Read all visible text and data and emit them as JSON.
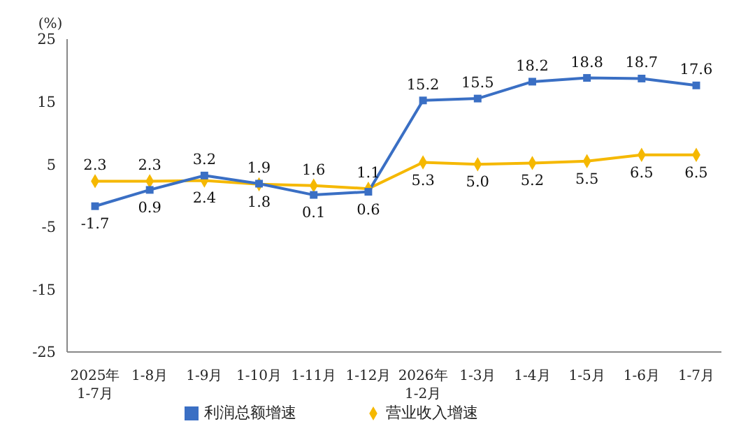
{
  "chart_data": {
    "type": "line",
    "ylabel": "(%)",
    "categories": [
      "2025年\n1-7月",
      "1-8月",
      "1-9月",
      "1-10月",
      "1-11月",
      "1-12月",
      "2026年\n1-2月",
      "1-3月",
      "1-4月",
      "1-5月",
      "1-6月",
      "1-7月"
    ],
    "series": [
      {
        "name": "营业收入增速",
        "color": "#f5b800",
        "marker": "diamond",
        "values": [
          2.3,
          2.3,
          2.4,
          1.8,
          1.6,
          1.1,
          5.3,
          5.0,
          5.2,
          5.5,
          6.5,
          6.5
        ],
        "value_labels": [
          "2.3",
          "2.3",
          "2.4",
          "1.8",
          "1.6",
          "1.1",
          "5.3",
          "5.0",
          "5.2",
          "5.5",
          "6.5",
          "6.5"
        ]
      },
      {
        "name": "利润总额增速",
        "color": "#3a6fc4",
        "marker": "square",
        "values": [
          -1.7,
          0.9,
          3.2,
          1.9,
          0.1,
          0.6,
          15.2,
          15.5,
          18.2,
          18.8,
          18.7,
          17.6
        ]
      }
    ],
    "ylim": [
      -25,
      25
    ],
    "yticks": [
      -25,
      -15,
      -5,
      5,
      15,
      25
    ],
    "data_labels": true,
    "legend": "bottom",
    "grid": false
  }
}
